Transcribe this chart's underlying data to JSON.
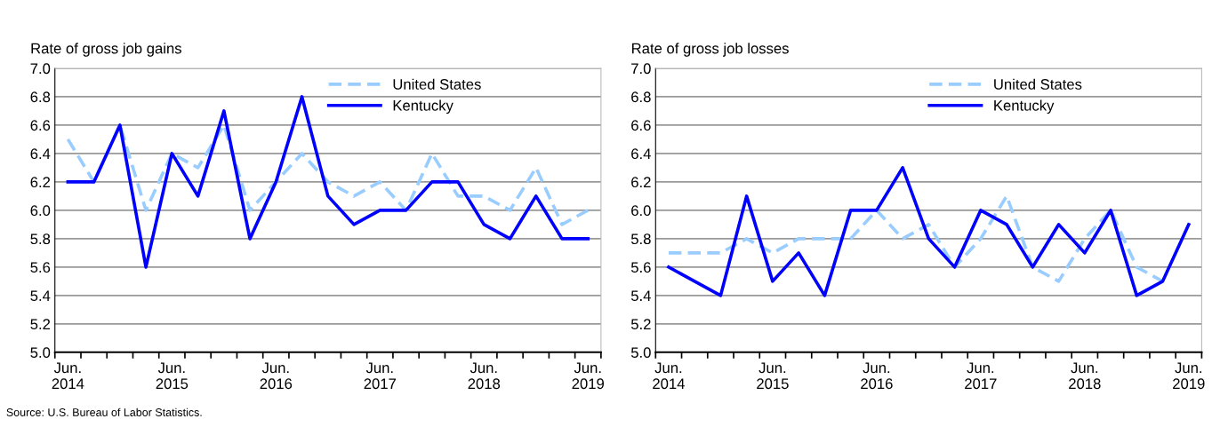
{
  "chart_data": [
    {
      "type": "line",
      "title": "Rate of gross job gains",
      "categories": [
        "Jun.\n2014",
        null,
        null,
        null,
        "Jun.\n2015",
        null,
        null,
        null,
        "Jun.\n2016",
        null,
        null,
        null,
        "Jun.\n2017",
        null,
        null,
        null,
        "Jun.\n2018",
        null,
        null,
        null,
        "Jun.\n2019"
      ],
      "series": [
        {
          "name": "United States",
          "color": "#99ccff",
          "line_style": "dashed",
          "values": [
            6.5,
            6.2,
            6.6,
            6.0,
            6.4,
            6.3,
            6.6,
            6.0,
            6.2,
            6.4,
            6.2,
            6.1,
            6.2,
            6.0,
            6.4,
            6.1,
            6.1,
            6.0,
            6.3,
            5.9,
            6.0
          ]
        },
        {
          "name": "Kentucky",
          "color": "#0000ff",
          "line_style": "solid",
          "values": [
            6.2,
            6.2,
            6.6,
            5.6,
            6.4,
            6.1,
            6.7,
            5.8,
            6.2,
            6.8,
            6.1,
            5.9,
            6.0,
            6.0,
            6.2,
            6.2,
            5.9,
            5.8,
            6.1,
            5.8,
            5.8
          ]
        }
      ],
      "ylim": [
        5.0,
        7.0
      ],
      "yticks": [
        {
          "value": 5.0,
          "label": "5.0"
        },
        5.2,
        5.4,
        5.6,
        5.8,
        {
          "value": 6.0,
          "label": "6.0"
        },
        6.2,
        6.4,
        6.6,
        6.8,
        {
          "value": 7.0,
          "label": "7.0"
        }
      ],
      "grid": "y",
      "legend": "top right",
      "marker": "none",
      "annotations": [
        "Source: U.S. Bureau of Labor Statistics."
      ]
    },
    {
      "type": "line",
      "title": "Rate of gross job losses",
      "categories": [
        "Jun.\n2014",
        null,
        null,
        null,
        "Jun.\n2015",
        null,
        null,
        null,
        "Jun.\n2016",
        null,
        null,
        null,
        "Jun.\n2017",
        null,
        null,
        null,
        "Jun.\n2018",
        null,
        null,
        null,
        "Jun.\n2019"
      ],
      "series": [
        {
          "name": "United States",
          "color": "#99ccff",
          "line_style": "dashed",
          "values": [
            5.7,
            5.7,
            5.7,
            5.8,
            5.7,
            5.8,
            5.8,
            5.8,
            6.0,
            5.8,
            5.9,
            5.6,
            5.8,
            6.1,
            5.6,
            5.5,
            5.8,
            6.0,
            5.6,
            5.5,
            null
          ]
        },
        {
          "name": "Kentucky",
          "color": "#0000ff",
          "line_style": "solid",
          "values": [
            5.6,
            5.5,
            5.4,
            6.1,
            5.5,
            5.7,
            5.4,
            6.0,
            6.0,
            6.3,
            5.8,
            5.6,
            6.0,
            5.9,
            5.6,
            5.9,
            5.7,
            6.0,
            5.4,
            5.5,
            5.9
          ]
        }
      ],
      "ylim": [
        5.0,
        7.0
      ],
      "yticks": [
        {
          "value": 5.0,
          "label": "5.0"
        },
        5.2,
        5.4,
        5.6,
        5.8,
        {
          "value": 6.0,
          "label": "6.0"
        },
        6.2,
        6.4,
        6.6,
        6.8,
        {
          "value": 7.0,
          "label": "7.0"
        }
      ],
      "grid": "y",
      "legend": "top right",
      "marker": "none"
    }
  ]
}
